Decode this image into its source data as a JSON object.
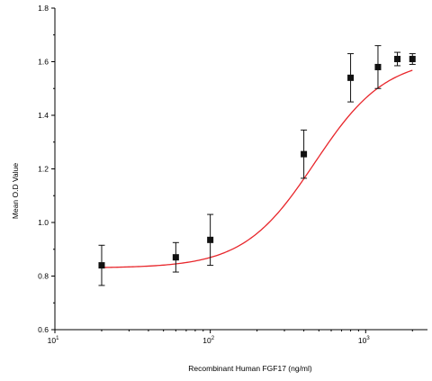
{
  "chart_data": {
    "type": "scatter",
    "title": "",
    "xlabel": "Recombinant Human FGF17 (ng/ml)",
    "ylabel": "Mean O.D Value",
    "x_scale": "log",
    "xlim": [
      10,
      2500
    ],
    "ylim": [
      0.6,
      1.8
    ],
    "x_ticks": [
      {
        "value": 10,
        "base": "10",
        "exp": "1"
      },
      {
        "value": 100,
        "base": "10",
        "exp": "2"
      },
      {
        "value": 1000,
        "base": "10",
        "exp": "3"
      }
    ],
    "y_ticks": [
      {
        "value": 0.6,
        "label": "0.6"
      },
      {
        "value": 0.8,
        "label": "0.8"
      },
      {
        "value": 1.0,
        "label": "1.0"
      },
      {
        "value": 1.2,
        "label": "1.2"
      },
      {
        "value": 1.4,
        "label": "1.4"
      },
      {
        "value": 1.6,
        "label": "1.6"
      },
      {
        "value": 1.8,
        "label": "1.8"
      }
    ],
    "grid": false,
    "legend": "none",
    "series": [
      {
        "points": [
          {
            "x": 20,
            "y": 0.84,
            "err": 0.075
          },
          {
            "x": 60,
            "y": 0.87,
            "err": 0.055
          },
          {
            "x": 100,
            "y": 0.935,
            "err": 0.095
          },
          {
            "x": 400,
            "y": 1.255,
            "err": 0.09
          },
          {
            "x": 800,
            "y": 1.54,
            "err": 0.09
          },
          {
            "x": 1200,
            "y": 1.58,
            "err": 0.08
          },
          {
            "x": 1600,
            "y": 1.61,
            "err": 0.025
          },
          {
            "x": 2000,
            "y": 1.61,
            "err": 0.02
          }
        ],
        "fit": {
          "model": "4PL",
          "bottom": 0.83,
          "top": 1.615,
          "ec50": 470,
          "hill": 1.9
        }
      }
    ],
    "colors": {
      "marker": "#111111",
      "fit_line": "#e8262b",
      "axis": "#000000"
    }
  }
}
